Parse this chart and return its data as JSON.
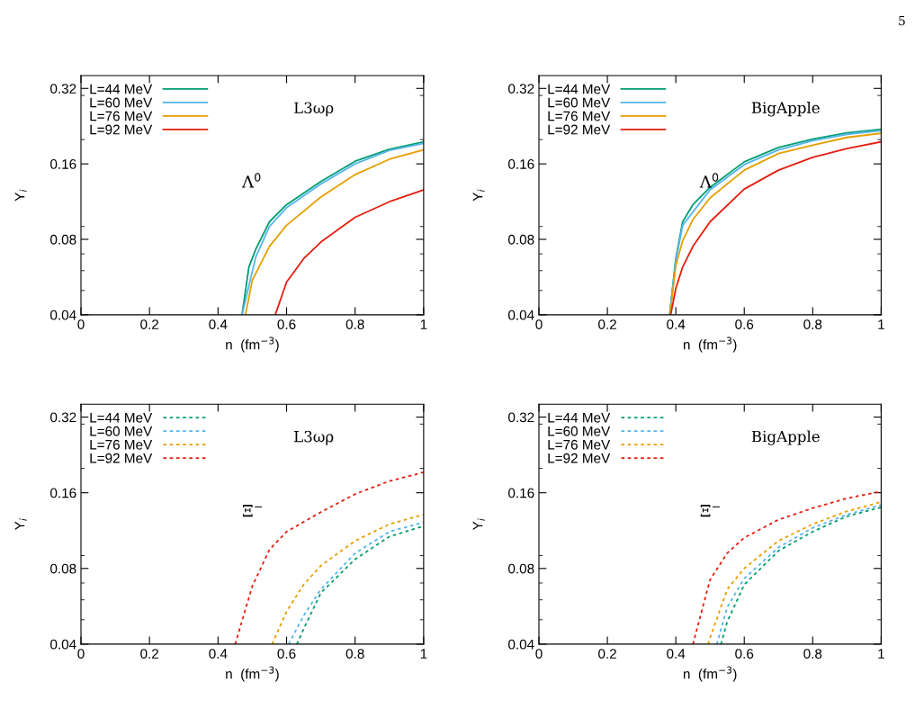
{
  "chart_data": [
    {
      "type": "line",
      "xlabel": "n  (fm$^{−3}$)",
      "ylabel": "Y$_{i}$",
      "log": "y",
      "xlim": [
        0,
        1
      ],
      "ylim": [
        0.04,
        0.36
      ],
      "xticks": [
        0,
        0.2,
        0.4,
        0.6,
        0.8,
        1
      ],
      "yticks": [
        0.04,
        0.08,
        0.16,
        0.32
      ],
      "grid": false,
      "legend": "top left",
      "line_style": "solid",
      "marker": "none",
      "annotations": [
        "L3ωρ",
        "Λ$^{0}$",
        "5"
      ],
      "series": [
        {
          "name": "L=44 MeV",
          "color": "#009e73",
          "x": [
            0.47,
            0.49,
            0.51,
            0.55,
            0.6,
            0.7,
            0.8,
            0.9,
            1.0
          ],
          "values": [
            0.04,
            0.062,
            0.073,
            0.094,
            0.11,
            0.136,
            0.164,
            0.183,
            0.196
          ]
        },
        {
          "name": "L=60 MeV",
          "color": "#56b4e9",
          "x": [
            0.47,
            0.51,
            0.55,
            0.6,
            0.7,
            0.8,
            0.9,
            1.0
          ],
          "values": [
            0.04,
            0.068,
            0.09,
            0.107,
            0.133,
            0.16,
            0.181,
            0.193
          ]
        },
        {
          "name": "L=76 MeV",
          "color": "#e69f00",
          "x": [
            0.48,
            0.5,
            0.55,
            0.6,
            0.7,
            0.8,
            0.9,
            1.0
          ],
          "values": [
            0.04,
            0.055,
            0.075,
            0.091,
            0.118,
            0.145,
            0.167,
            0.182
          ]
        },
        {
          "name": "L=92 MeV",
          "color": "#e51e10",
          "x": [
            0.567,
            0.6,
            0.65,
            0.7,
            0.8,
            0.9,
            1.0
          ],
          "values": [
            0.04,
            0.054,
            0.067,
            0.078,
            0.098,
            0.113,
            0.126
          ]
        }
      ]
    },
    {
      "type": "line",
      "xlabel": "n  (fm$^{−3}$)",
      "ylabel": "Y$_{i}$",
      "log": "y",
      "xlim": [
        0,
        1
      ],
      "ylim": [
        0.04,
        0.36
      ],
      "xticks": [
        0,
        0.2,
        0.4,
        0.6,
        0.8,
        1
      ],
      "yticks": [
        0.04,
        0.08,
        0.16,
        0.32
      ],
      "grid": false,
      "legend": "top left",
      "line_style": "solid",
      "marker": "none",
      "annotations": [
        "BigApple",
        "Λ$^{0}$"
      ],
      "series": [
        {
          "name": "L=44 MeV",
          "color": "#009e73",
          "x": [
            0.382,
            0.4,
            0.42,
            0.45,
            0.5,
            0.6,
            0.7,
            0.8,
            0.9,
            1.0
          ],
          "values": [
            0.04,
            0.067,
            0.094,
            0.11,
            0.129,
            0.163,
            0.186,
            0.201,
            0.213,
            0.22
          ]
        },
        {
          "name": "L=60 MeV",
          "color": "#56b4e9",
          "x": [
            0.382,
            0.4,
            0.42,
            0.5,
            0.6,
            0.7,
            0.8,
            0.9,
            1.0
          ],
          "values": [
            0.04,
            0.066,
            0.091,
            0.126,
            0.159,
            0.182,
            0.198,
            0.21,
            0.217
          ]
        },
        {
          "name": "L=76 MeV",
          "color": "#e69f00",
          "x": [
            0.383,
            0.4,
            0.42,
            0.45,
            0.5,
            0.6,
            0.7,
            0.8,
            0.9,
            1.0
          ],
          "values": [
            0.04,
            0.063,
            0.079,
            0.096,
            0.117,
            0.151,
            0.176,
            0.19,
            0.204,
            0.212
          ]
        },
        {
          "name": "L=92 MeV",
          "color": "#e51e10",
          "x": [
            0.385,
            0.4,
            0.42,
            0.45,
            0.5,
            0.6,
            0.7,
            0.8,
            0.9,
            1.0
          ],
          "values": [
            0.04,
            0.051,
            0.062,
            0.075,
            0.094,
            0.127,
            0.151,
            0.17,
            0.184,
            0.196
          ]
        }
      ]
    },
    {
      "type": "line",
      "xlabel": "n  (fm$^{−3}$)",
      "ylabel": "Y$_{i}$",
      "log": "y",
      "xlim": [
        0,
        1
      ],
      "ylim": [
        0.04,
        0.36
      ],
      "xticks": [
        0,
        0.2,
        0.4,
        0.6,
        0.8,
        1
      ],
      "yticks": [
        0.04,
        0.08,
        0.16,
        0.32
      ],
      "grid": false,
      "legend": "top left",
      "line_style": "dashed",
      "marker": "none",
      "annotations": [
        "L3ωρ",
        "Ξ$^{−}$"
      ],
      "series": [
        {
          "name": "L=44 MeV",
          "color": "#009e73",
          "x": [
            0.63,
            0.65,
            0.7,
            0.8,
            0.9,
            1.0
          ],
          "values": [
            0.04,
            0.046,
            0.064,
            0.087,
            0.107,
            0.118
          ]
        },
        {
          "name": "L=60 MeV",
          "color": "#56b4e9",
          "x": [
            0.606,
            0.65,
            0.7,
            0.8,
            0.9,
            1.0
          ],
          "values": [
            0.04,
            0.052,
            0.066,
            0.092,
            0.112,
            0.122
          ]
        },
        {
          "name": "L=76 MeV",
          "color": "#e69f00",
          "x": [
            0.558,
            0.6,
            0.65,
            0.7,
            0.8,
            0.9,
            1.0
          ],
          "values": [
            0.04,
            0.054,
            0.069,
            0.082,
            0.103,
            0.12,
            0.131
          ]
        },
        {
          "name": "L=92 MeV",
          "color": "#e51e10",
          "x": [
            0.45,
            0.5,
            0.55,
            0.6,
            0.7,
            0.8,
            0.9,
            1.0
          ],
          "values": [
            0.04,
            0.068,
            0.095,
            0.112,
            0.134,
            0.158,
            0.178,
            0.193
          ]
        }
      ]
    },
    {
      "type": "line",
      "xlabel": "n  (fm$^{−3}$)",
      "ylabel": "Y$_{i}$",
      "log": "y",
      "xlim": [
        0,
        1
      ],
      "ylim": [
        0.04,
        0.36
      ],
      "xticks": [
        0,
        0.2,
        0.4,
        0.6,
        0.8,
        1
      ],
      "yticks": [
        0.04,
        0.08,
        0.16,
        0.32
      ],
      "grid": false,
      "legend": "top left",
      "line_style": "dashed",
      "marker": "none",
      "annotations": [
        "BigApple",
        "Ξ$^{−}$"
      ],
      "series": [
        {
          "name": "L=44 MeV",
          "color": "#009e73",
          "x": [
            0.532,
            0.55,
            0.6,
            0.7,
            0.8,
            0.9,
            1.0
          ],
          "values": [
            0.04,
            0.049,
            0.069,
            0.094,
            0.112,
            0.129,
            0.14
          ]
        },
        {
          "name": "L=60 MeV",
          "color": "#56b4e9",
          "x": [
            0.52,
            0.55,
            0.6,
            0.7,
            0.8,
            0.9,
            1.0
          ],
          "values": [
            0.04,
            0.056,
            0.073,
            0.097,
            0.116,
            0.131,
            0.143
          ]
        },
        {
          "name": "L=76 MeV",
          "color": "#e69f00",
          "x": [
            0.494,
            0.55,
            0.6,
            0.7,
            0.8,
            0.9,
            1.0
          ],
          "values": [
            0.04,
            0.066,
            0.08,
            0.103,
            0.12,
            0.135,
            0.147
          ]
        },
        {
          "name": "L=92 MeV",
          "color": "#e51e10",
          "x": [
            0.45,
            0.5,
            0.55,
            0.6,
            0.7,
            0.8,
            0.9,
            1.0
          ],
          "values": [
            0.04,
            0.072,
            0.092,
            0.106,
            0.125,
            0.139,
            0.152,
            0.162
          ]
        }
      ]
    }
  ]
}
